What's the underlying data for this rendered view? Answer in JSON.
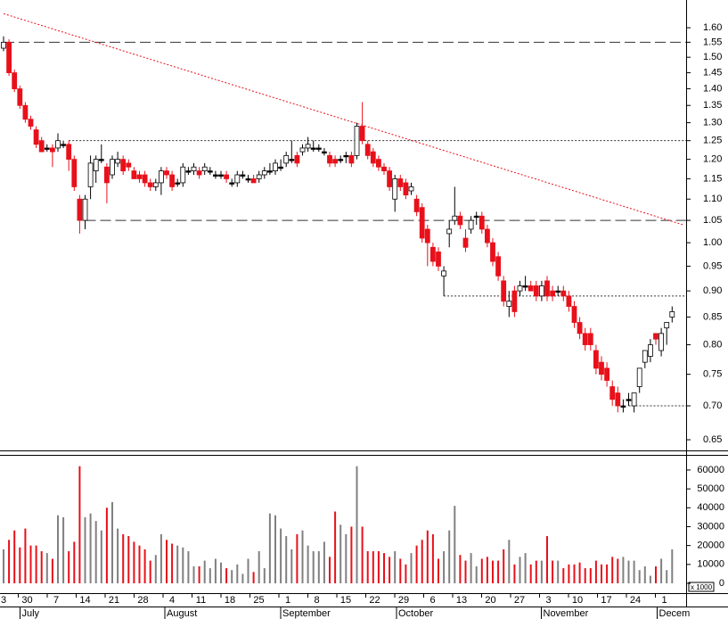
{
  "chart_data": {
    "type": "candlestick",
    "ohlc": [
      [
        1.53,
        1.57,
        1.52,
        1.55
      ],
      [
        1.55,
        1.56,
        1.44,
        1.45
      ],
      [
        1.45,
        1.46,
        1.39,
        1.4
      ],
      [
        1.4,
        1.41,
        1.34,
        1.35
      ],
      [
        1.35,
        1.36,
        1.3,
        1.31
      ],
      [
        1.31,
        1.32,
        1.28,
        1.29
      ],
      [
        1.28,
        1.29,
        1.23,
        1.24
      ],
      [
        1.25,
        1.26,
        1.22,
        1.22
      ],
      [
        1.23,
        1.24,
        1.22,
        1.23
      ],
      [
        1.23,
        1.24,
        1.18,
        1.22
      ],
      [
        1.23,
        1.27,
        1.22,
        1.25
      ],
      [
        1.24,
        1.25,
        1.23,
        1.24
      ],
      [
        1.24,
        1.25,
        1.17,
        1.2
      ],
      [
        1.2,
        1.21,
        1.12,
        1.13
      ],
      [
        1.1,
        1.11,
        1.02,
        1.05
      ],
      [
        1.05,
        1.11,
        1.03,
        1.1
      ],
      [
        1.13,
        1.21,
        1.1,
        1.19
      ],
      [
        1.17,
        1.21,
        1.14,
        1.2
      ],
      [
        1.2,
        1.24,
        1.19,
        1.2
      ],
      [
        1.18,
        1.19,
        1.09,
        1.14
      ],
      [
        1.16,
        1.21,
        1.15,
        1.2
      ],
      [
        1.19,
        1.22,
        1.18,
        1.2
      ],
      [
        1.2,
        1.21,
        1.16,
        1.17
      ],
      [
        1.19,
        1.2,
        1.17,
        1.18
      ],
      [
        1.17,
        1.18,
        1.15,
        1.15
      ],
      [
        1.16,
        1.17,
        1.14,
        1.15
      ],
      [
        1.16,
        1.17,
        1.13,
        1.14
      ],
      [
        1.14,
        1.15,
        1.12,
        1.13
      ],
      [
        1.13,
        1.15,
        1.12,
        1.14
      ],
      [
        1.14,
        1.18,
        1.11,
        1.17
      ],
      [
        1.17,
        1.18,
        1.15,
        1.16
      ],
      [
        1.16,
        1.17,
        1.12,
        1.13
      ],
      [
        1.14,
        1.15,
        1.13,
        1.14
      ],
      [
        1.14,
        1.19,
        1.13,
        1.18
      ],
      [
        1.17,
        1.18,
        1.16,
        1.17
      ],
      [
        1.17,
        1.19,
        1.16,
        1.18
      ],
      [
        1.17,
        1.18,
        1.15,
        1.16
      ],
      [
        1.17,
        1.19,
        1.16,
        1.18
      ],
      [
        1.17,
        1.18,
        1.16,
        1.17
      ],
      [
        1.16,
        1.17,
        1.15,
        1.16
      ],
      [
        1.16,
        1.17,
        1.15,
        1.16
      ],
      [
        1.16,
        1.17,
        1.14,
        1.15
      ],
      [
        1.14,
        1.15,
        1.13,
        1.14
      ],
      [
        1.14,
        1.17,
        1.13,
        1.16
      ],
      [
        1.16,
        1.17,
        1.15,
        1.16
      ],
      [
        1.15,
        1.16,
        1.14,
        1.15
      ],
      [
        1.15,
        1.16,
        1.14,
        1.14
      ],
      [
        1.15,
        1.17,
        1.14,
        1.16
      ],
      [
        1.16,
        1.18,
        1.15,
        1.17
      ],
      [
        1.17,
        1.19,
        1.16,
        1.17
      ],
      [
        1.17,
        1.2,
        1.16,
        1.19
      ],
      [
        1.18,
        1.2,
        1.17,
        1.18
      ],
      [
        1.19,
        1.22,
        1.18,
        1.21
      ],
      [
        1.2,
        1.25,
        1.19,
        1.2
      ],
      [
        1.21,
        1.22,
        1.18,
        1.19
      ],
      [
        1.22,
        1.24,
        1.21,
        1.23
      ],
      [
        1.23,
        1.26,
        1.22,
        1.24
      ],
      [
        1.23,
        1.25,
        1.22,
        1.23
      ],
      [
        1.23,
        1.24,
        1.22,
        1.23
      ],
      [
        1.22,
        1.23,
        1.21,
        1.22
      ],
      [
        1.21,
        1.22,
        1.18,
        1.19
      ],
      [
        1.2,
        1.21,
        1.18,
        1.19
      ],
      [
        1.2,
        1.21,
        1.19,
        1.2
      ],
      [
        1.21,
        1.22,
        1.19,
        1.21
      ],
      [
        1.21,
        1.22,
        1.18,
        1.19
      ],
      [
        1.21,
        1.3,
        1.2,
        1.29
      ],
      [
        1.29,
        1.36,
        1.24,
        1.25
      ],
      [
        1.24,
        1.25,
        1.2,
        1.21
      ],
      [
        1.22,
        1.23,
        1.18,
        1.19
      ],
      [
        1.2,
        1.21,
        1.17,
        1.18
      ],
      [
        1.18,
        1.19,
        1.16,
        1.17
      ],
      [
        1.17,
        1.18,
        1.12,
        1.13
      ],
      [
        1.1,
        1.16,
        1.07,
        1.15
      ],
      [
        1.15,
        1.16,
        1.12,
        1.13
      ],
      [
        1.14,
        1.15,
        1.1,
        1.11
      ],
      [
        1.12,
        1.14,
        1.11,
        1.13
      ],
      [
        1.1,
        1.11,
        1.06,
        1.07
      ],
      [
        1.08,
        1.09,
        1.0,
        1.01
      ],
      [
        1.03,
        1.04,
        0.95,
        1.0
      ],
      [
        0.99,
        1.0,
        0.95,
        0.96
      ],
      [
        0.98,
        0.99,
        0.94,
        0.95
      ],
      [
        0.93,
        0.95,
        0.89,
        0.94
      ],
      [
        1.02,
        1.05,
        0.99,
        1.03
      ],
      [
        1.05,
        1.13,
        1.04,
        1.06
      ],
      [
        1.06,
        1.07,
        1.03,
        1.04
      ],
      [
        1.01,
        1.03,
        0.98,
        0.99
      ],
      [
        1.03,
        1.06,
        1.02,
        1.05
      ],
      [
        1.06,
        1.07,
        1.04,
        1.06
      ],
      [
        1.06,
        1.07,
        1.02,
        1.03
      ],
      [
        1.03,
        1.04,
        0.99,
        1.0
      ],
      [
        1.0,
        1.01,
        0.95,
        0.96
      ],
      [
        0.97,
        0.98,
        0.92,
        0.93
      ],
      [
        0.92,
        0.93,
        0.87,
        0.88
      ],
      [
        0.87,
        0.9,
        0.85,
        0.88
      ],
      [
        0.9,
        0.91,
        0.85,
        0.86
      ],
      [
        0.9,
        0.92,
        0.89,
        0.91
      ],
      [
        0.91,
        0.93,
        0.9,
        0.91
      ],
      [
        0.91,
        0.92,
        0.9,
        0.9
      ],
      [
        0.91,
        0.92,
        0.88,
        0.89
      ],
      [
        0.89,
        0.92,
        0.88,
        0.91
      ],
      [
        0.92,
        0.93,
        0.88,
        0.89
      ],
      [
        0.9,
        0.91,
        0.88,
        0.89
      ],
      [
        0.9,
        0.91,
        0.89,
        0.9
      ],
      [
        0.9,
        0.91,
        0.88,
        0.89
      ],
      [
        0.89,
        0.9,
        0.86,
        0.87
      ],
      [
        0.87,
        0.88,
        0.83,
        0.84
      ],
      [
        0.84,
        0.85,
        0.81,
        0.82
      ],
      [
        0.82,
        0.83,
        0.79,
        0.8
      ],
      [
        0.82,
        0.83,
        0.79,
        0.8
      ],
      [
        0.79,
        0.8,
        0.75,
        0.76
      ],
      [
        0.77,
        0.78,
        0.74,
        0.75
      ],
      [
        0.76,
        0.77,
        0.73,
        0.74
      ],
      [
        0.73,
        0.74,
        0.7,
        0.71
      ],
      [
        0.72,
        0.73,
        0.69,
        0.7
      ],
      [
        0.7,
        0.71,
        0.69,
        0.7
      ],
      [
        0.71,
        0.72,
        0.7,
        0.71
      ],
      [
        0.7,
        0.72,
        0.69,
        0.72
      ],
      [
        0.73,
        0.76,
        0.72,
        0.76
      ],
      [
        0.77,
        0.79,
        0.76,
        0.79
      ],
      [
        0.78,
        0.81,
        0.77,
        0.8
      ],
      [
        0.82,
        0.82,
        0.8,
        0.81
      ],
      [
        0.79,
        0.83,
        0.78,
        0.82
      ],
      [
        0.83,
        0.84,
        0.8,
        0.84
      ],
      [
        0.85,
        0.87,
        0.84,
        0.86
      ]
    ],
    "volume": [
      18000,
      23000,
      28000,
      19000,
      29000,
      20000,
      20000,
      17000,
      16000,
      13000,
      36000,
      35000,
      17000,
      22000,
      62000,
      35000,
      37000,
      33000,
      28000,
      40000,
      43000,
      29000,
      26000,
      25000,
      22000,
      20000,
      18000,
      12000,
      15000,
      26000,
      23000,
      21000,
      20000,
      19000,
      17000,
      9000,
      9000,
      12000,
      8000,
      13000,
      11000,
      8000,
      7000,
      10000,
      5000,
      13000,
      6000,
      17000,
      8000,
      37000,
      36000,
      29000,
      25000,
      18000,
      26000,
      28000,
      20000,
      17000,
      17000,
      22000,
      14000,
      38000,
      31000,
      26000,
      30000,
      62000,
      30000,
      17000,
      17000,
      17000,
      16000,
      14000,
      17000,
      13000,
      10000,
      16000,
      20000,
      23000,
      28000,
      26000,
      13000,
      17000,
      28000,
      41000,
      15000,
      12000,
      16000,
      9000,
      13000,
      14000,
      12000,
      12000,
      18000,
      23000,
      10000,
      14000,
      16000,
      10000,
      12000,
      12000,
      25000,
      12000,
      12000,
      8000,
      10000,
      10000,
      11000,
      8000,
      8000,
      12000,
      10000,
      10000,
      14000,
      13000,
      14000,
      12000,
      12000,
      7000,
      9000,
      4000,
      9000,
      13000,
      7000,
      18000
    ],
    "ylim": [
      0.635,
      1.7
    ],
    "log_y": true,
    "yticks": [
      {
        "value": 1.6,
        "label": "1.60"
      },
      1.55,
      {
        "value": 1.5,
        "label": "1.50"
      },
      1.45,
      {
        "value": 1.4,
        "label": "1.40"
      },
      1.35,
      {
        "value": 1.3,
        "label": "1.30"
      },
      1.25,
      {
        "value": 1.2,
        "label": "1.20"
      },
      1.15,
      {
        "value": 1.1,
        "label": "1.10"
      },
      1.05,
      {
        "value": 1,
        "label": "1.00"
      },
      0.95,
      {
        "value": 0.9,
        "label": "0.90"
      },
      0.85,
      {
        "value": 0.8,
        "label": "0.80"
      },
      0.75,
      {
        "value": 0.7,
        "label": "0.70"
      },
      0.65
    ],
    "volume_ylim": [
      -5200,
      68000
    ],
    "volume_yticks": [
      0,
      10000,
      20000,
      30000,
      40000,
      50000,
      60000
    ],
    "volume_unit": "x 1000",
    "week_labels": [
      "3",
      "30",
      "7",
      "14",
      "21",
      "28",
      "4",
      "11",
      "18",
      "25",
      "1",
      "8",
      "15",
      "22",
      "29",
      "6",
      "13",
      "20",
      "27",
      "3",
      "10",
      "17",
      "24",
      "1"
    ],
    "month_labels": [
      null,
      "July",
      null,
      null,
      null,
      null,
      "August",
      null,
      null,
      null,
      "September",
      null,
      null,
      null,
      "October",
      null,
      null,
      null,
      null,
      "November",
      null,
      null,
      null,
      "Decem"
    ],
    "hlines": [
      {
        "value": 1.55,
        "from": 0,
        "style": "dashed"
      },
      {
        "value": 1.25,
        "from": 12,
        "style": "dotted"
      },
      {
        "value": 1.05,
        "from": 15,
        "style": "dashed"
      },
      {
        "value": 0.89,
        "from": 81,
        "style": "dotted"
      },
      {
        "value": 0.7,
        "from": 115,
        "style": "dotted"
      }
    ],
    "trendline": {
      "from": [
        0,
        1.65
      ],
      "to": [
        125,
        1.04
      ],
      "color": "#e8101a"
    },
    "up_color": "#ffffff",
    "down_color": "#e8101a",
    "up_volume_color": "#808080"
  }
}
